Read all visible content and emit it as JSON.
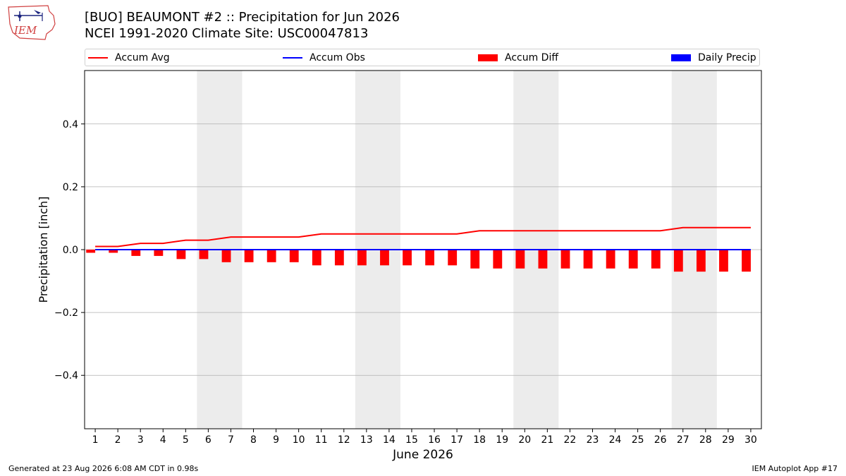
{
  "header": {
    "logo_text": "IEM",
    "title_line1": "[BUO] BEAUMONT #2 :: Precipitation for Jun 2026",
    "title_line2": "NCEI 1991-2020 Climate Site: USC00047813"
  },
  "legend": {
    "accum_avg": "Accum Avg",
    "accum_obs": "Accum Obs",
    "accum_diff": "Accum Diff",
    "daily_precip": "Daily Precip"
  },
  "footer": {
    "generated": "Generated at 23 Aug 2026 6:08 AM CDT in 0.98s",
    "app": "IEM Autoplot App #17"
  },
  "colors": {
    "accum_avg": "#ff0000",
    "accum_obs": "#0000ff",
    "accum_diff": "#ff0000",
    "daily_precip": "#0000ff",
    "weekend_shading": "#ececec",
    "grid": "#b0b0b0"
  },
  "chart_data": {
    "type": "bar",
    "xlabel": "June 2026",
    "ylabel": "Precipitation [inch]",
    "ylim": [
      -0.57,
      0.57
    ],
    "yticks": [
      -0.4,
      -0.2,
      0.0,
      0.2,
      0.4
    ],
    "ytick_labels": [
      "−0.4",
      "−0.2",
      "0.0",
      "0.2",
      "0.4"
    ],
    "grid": "horizontal",
    "legend_position": "top",
    "x": [
      1,
      2,
      3,
      4,
      5,
      6,
      7,
      8,
      9,
      10,
      11,
      12,
      13,
      14,
      15,
      16,
      17,
      18,
      19,
      20,
      21,
      22,
      23,
      24,
      25,
      26,
      27,
      28,
      29,
      30
    ],
    "weekend_spans": [
      [
        6,
        7
      ],
      [
        13,
        14
      ],
      [
        20,
        21
      ],
      [
        27,
        28
      ]
    ],
    "series": [
      {
        "name": "Accum Avg",
        "kind": "line",
        "values": [
          0.01,
          0.01,
          0.02,
          0.02,
          0.03,
          0.03,
          0.04,
          0.04,
          0.04,
          0.04,
          0.05,
          0.05,
          0.05,
          0.05,
          0.05,
          0.05,
          0.05,
          0.06,
          0.06,
          0.06,
          0.06,
          0.06,
          0.06,
          0.06,
          0.06,
          0.06,
          0.07,
          0.07,
          0.07,
          0.07
        ]
      },
      {
        "name": "Accum Obs",
        "kind": "line",
        "values": [
          0,
          0,
          0,
          0,
          0,
          0,
          0,
          0,
          0,
          0,
          0,
          0,
          0,
          0,
          0,
          0,
          0,
          0,
          0,
          0,
          0,
          0,
          0,
          0,
          0,
          0,
          0,
          0,
          0,
          0
        ]
      },
      {
        "name": "Accum Diff",
        "kind": "bar",
        "values": [
          -0.01,
          -0.01,
          -0.02,
          -0.02,
          -0.03,
          -0.03,
          -0.04,
          -0.04,
          -0.04,
          -0.04,
          -0.05,
          -0.05,
          -0.05,
          -0.05,
          -0.05,
          -0.05,
          -0.05,
          -0.06,
          -0.06,
          -0.06,
          -0.06,
          -0.06,
          -0.06,
          -0.06,
          -0.06,
          -0.06,
          -0.07,
          -0.07,
          -0.07,
          -0.07
        ]
      },
      {
        "name": "Daily Precip",
        "kind": "bar",
        "values": [
          0,
          0,
          0,
          0,
          0,
          0,
          0,
          0,
          0,
          0,
          0,
          0,
          0,
          0,
          0,
          0,
          0,
          0,
          0,
          0,
          0,
          0,
          0,
          0,
          0,
          0,
          0,
          0,
          0,
          0
        ]
      }
    ]
  }
}
